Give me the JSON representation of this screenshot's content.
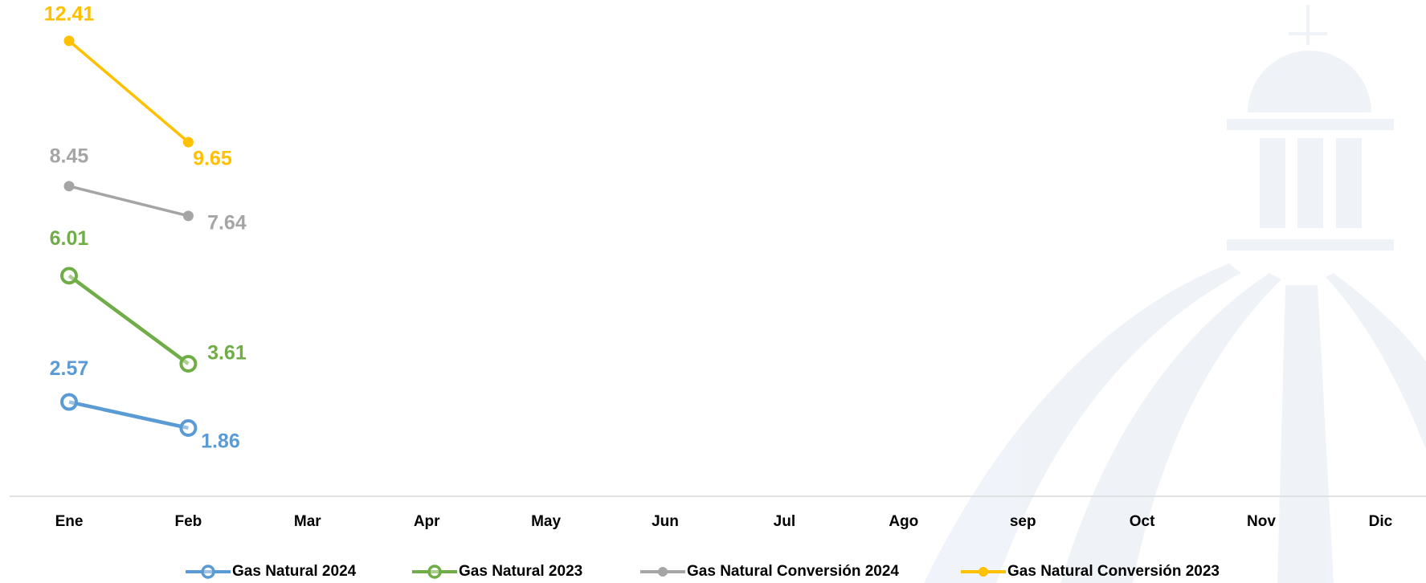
{
  "chart_data": {
    "type": "line",
    "categories": [
      "Ene",
      "Feb",
      "Mar",
      "Apr",
      "May",
      "Jun",
      "Jul",
      "Ago",
      "sep",
      "Oct",
      "Nov",
      "Dic"
    ],
    "series": [
      {
        "name": "Gas Natural 2024",
        "color": "#5b9bd5",
        "values": [
          2.57,
          1.86,
          null,
          null,
          null,
          null,
          null,
          null,
          null,
          null,
          null,
          null
        ]
      },
      {
        "name": "Gas Natural 2023",
        "color": "#70ad47",
        "values": [
          6.01,
          3.61,
          null,
          null,
          null,
          null,
          null,
          null,
          null,
          null,
          null,
          null
        ]
      },
      {
        "name": "Gas Natural Conversión 2024",
        "color": "#a5a5a5",
        "values": [
          8.45,
          7.64,
          null,
          null,
          null,
          null,
          null,
          null,
          null,
          null,
          null,
          null
        ]
      },
      {
        "name": "Gas Natural Conversión 2023",
        "color": "#ffc000",
        "values": [
          12.41,
          9.65,
          null,
          null,
          null,
          null,
          null,
          null,
          null,
          null,
          null,
          null
        ]
      }
    ],
    "legend": "bottom"
  }
}
